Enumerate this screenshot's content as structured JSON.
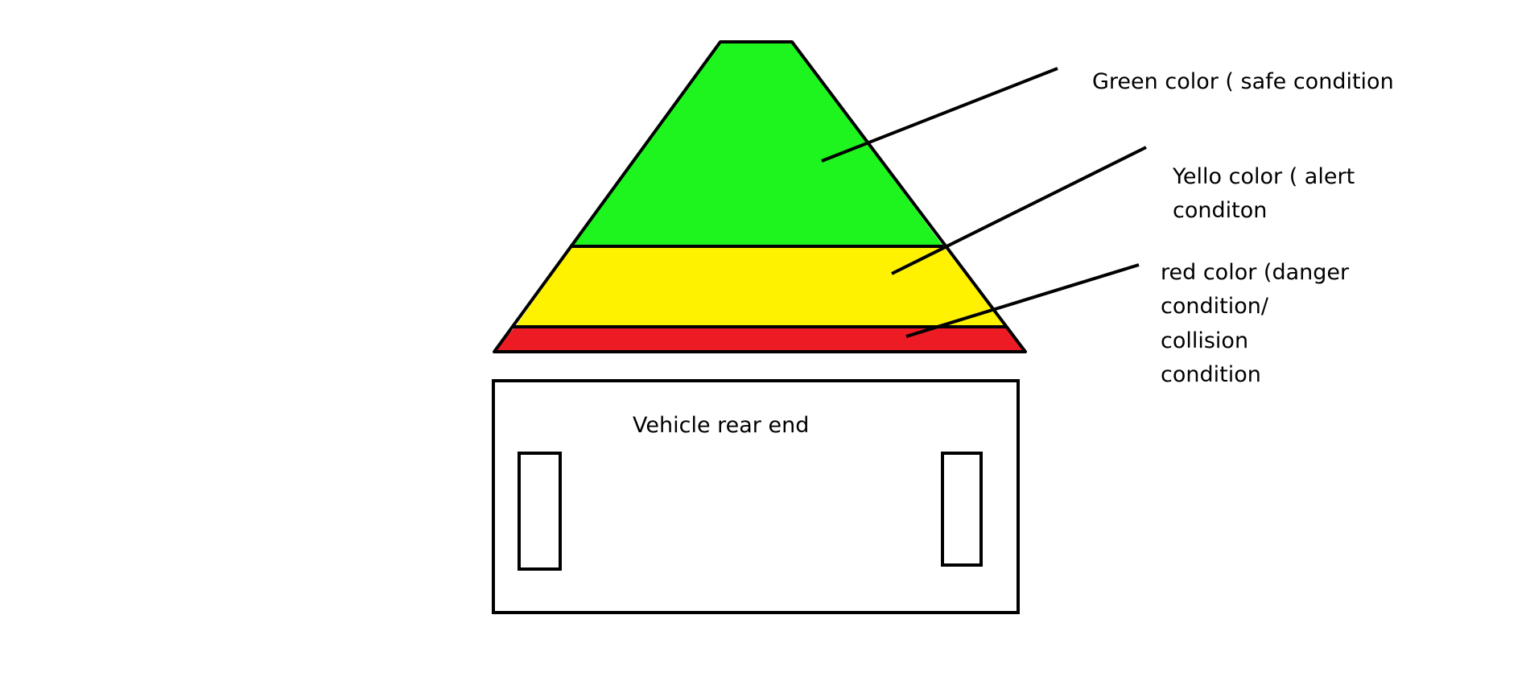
{
  "diagram": {
    "zones": [
      {
        "name": "green",
        "color": "#1ef51e"
      },
      {
        "name": "yellow",
        "color": "#fff200"
      },
      {
        "name": "red",
        "color": "#ed1c24"
      }
    ],
    "labels": {
      "green": "Green color ( safe condition",
      "yellow": [
        "Yello color ( alert",
        "conditon"
      ],
      "red": [
        "red color (danger",
        "condition/",
        "collision",
        "condition"
      ]
    },
    "vehicle": {
      "label": "Vehicle rear end"
    },
    "stroke_color": "#000000"
  }
}
